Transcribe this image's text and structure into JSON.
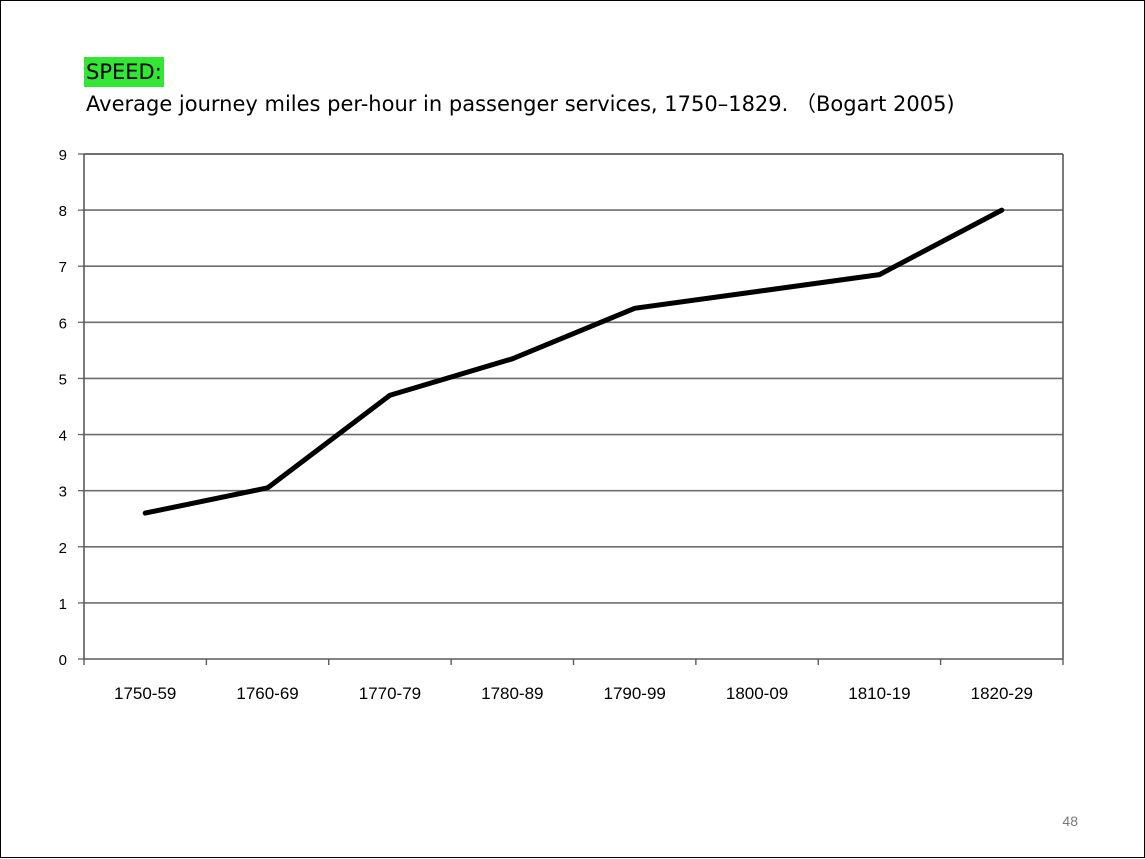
{
  "slide": {
    "heading_label": "SPEED:",
    "subtitle": "Average journey miles per-hour in passenger services, 1750–1829. （Bogart 2005)",
    "page_number": "48",
    "highlight_color": "#33e633"
  },
  "chart_data": {
    "type": "line",
    "title": "",
    "xlabel": "",
    "ylabel": "",
    "categories": [
      "1750-59",
      "1760-69",
      "1770-79",
      "1780-89",
      "1790-99",
      "1800-09",
      "1810-19",
      "1820-29"
    ],
    "series": [
      {
        "values": [
          2.6,
          3.05,
          4.7,
          5.35,
          6.25,
          6.55,
          6.85,
          8.0
        ],
        "color": "#000000"
      }
    ],
    "ylim": [
      0,
      9
    ],
    "yticks": [
      0,
      1,
      2,
      3,
      4,
      5,
      6,
      7,
      8,
      9
    ],
    "grid": true,
    "legend": "none"
  }
}
